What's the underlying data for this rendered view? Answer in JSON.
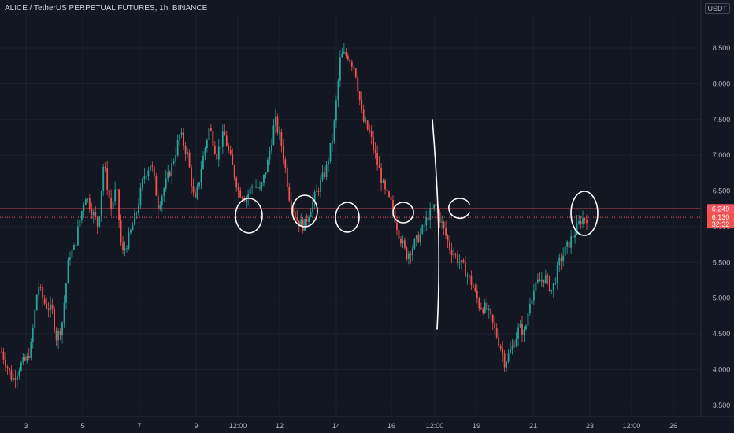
{
  "header": {
    "title": "ALICE / TetherUS PERPETUAL FUTURES, 1h, BINANCE",
    "currency": "USDT"
  },
  "colors": {
    "background": "#131722",
    "grid": "#1e222d",
    "axis_text": "#b2b5be",
    "up": "#26a69a",
    "down": "#ef5350",
    "line": "#f7525f",
    "annotation": "#ffffff"
  },
  "chart_data": {
    "type": "candlestick",
    "title": "ALICE / TetherUS PERPETUAL FUTURES, 1h, BINANCE",
    "ylim": [
      3.4,
      8.8
    ],
    "y_ticks": [
      "8.500",
      "8.000",
      "7.500",
      "7.000",
      "6.500",
      "6.000",
      "5.500",
      "5.000",
      "4.500",
      "4.000",
      "3.500"
    ],
    "x_ticks": [
      "3",
      "5",
      "7",
      "9",
      "12:00",
      "12",
      "14",
      "16",
      "12:00",
      "19",
      "21",
      "23",
      "12:00",
      "26"
    ],
    "grid": true,
    "horizontal_line": {
      "value": 6.249,
      "label": "6.249"
    },
    "last_price": {
      "value": 6.13,
      "label": "6.130",
      "countdown": "32:32"
    },
    "price_path": [
      [
        0,
        4.25
      ],
      [
        0.06,
        3.85
      ],
      [
        0.1,
        4.05
      ],
      [
        0.12,
        4.1
      ],
      [
        0.14,
        4.15
      ],
      [
        0.16,
        4.3
      ],
      [
        0.2,
        5.2
      ],
      [
        0.23,
        4.95
      ],
      [
        0.28,
        4.8
      ],
      [
        0.3,
        4.45
      ],
      [
        0.33,
        4.6
      ],
      [
        0.37,
        5.6
      ],
      [
        0.4,
        5.7
      ],
      [
        0.43,
        6.1
      ],
      [
        0.46,
        6.45
      ],
      [
        0.5,
        6.2
      ],
      [
        0.53,
        6.0
      ],
      [
        0.56,
        6.9
      ],
      [
        0.6,
        6.25
      ],
      [
        0.63,
        6.55
      ],
      [
        0.66,
        5.6
      ],
      [
        0.7,
        5.85
      ],
      [
        0.74,
        6.2
      ],
      [
        0.78,
        6.7
      ],
      [
        0.82,
        6.9
      ],
      [
        0.86,
        6.3
      ],
      [
        0.9,
        6.6
      ],
      [
        0.94,
        6.9
      ],
      [
        0.98,
        7.3
      ],
      [
        1.02,
        7.0
      ],
      [
        1.06,
        6.3
      ],
      [
        1.1,
        6.9
      ],
      [
        1.14,
        7.4
      ],
      [
        1.18,
        7.0
      ],
      [
        1.22,
        7.3
      ],
      [
        1.26,
        6.9
      ],
      [
        1.3,
        6.5
      ],
      [
        1.34,
        6.4
      ],
      [
        1.38,
        6.6
      ],
      [
        1.42,
        6.5
      ],
      [
        1.46,
        6.9
      ],
      [
        1.5,
        7.5
      ],
      [
        1.54,
        7.1
      ],
      [
        1.58,
        6.4
      ],
      [
        1.62,
        6.1
      ],
      [
        1.66,
        6.0
      ],
      [
        1.7,
        6.3
      ],
      [
        1.74,
        6.55
      ],
      [
        1.78,
        6.8
      ],
      [
        1.82,
        7.3
      ],
      [
        1.86,
        8.4
      ],
      [
        1.9,
        8.4
      ],
      [
        1.94,
        8.2
      ],
      [
        1.98,
        7.5
      ],
      [
        2.02,
        7.3
      ],
      [
        2.06,
        6.9
      ],
      [
        2.1,
        6.5
      ],
      [
        2.14,
        6.3
      ],
      [
        2.18,
        5.9
      ],
      [
        2.22,
        5.6
      ],
      [
        2.25,
        5.7
      ],
      [
        2.3,
        5.9
      ],
      [
        2.34,
        6.15
      ],
      [
        2.38,
        6.3
      ],
      [
        2.42,
        6.0
      ],
      [
        2.46,
        5.7
      ],
      [
        2.5,
        5.55
      ],
      [
        2.54,
        5.4
      ],
      [
        2.58,
        5.2
      ],
      [
        2.62,
        4.9
      ],
      [
        2.66,
        4.85
      ],
      [
        2.7,
        4.6
      ],
      [
        2.74,
        4.3
      ],
      [
        2.76,
        4.1
      ],
      [
        2.8,
        4.3
      ],
      [
        2.84,
        4.6
      ],
      [
        2.87,
        4.5
      ],
      [
        2.9,
        5.0
      ],
      [
        2.94,
        5.2
      ],
      [
        2.98,
        5.3
      ],
      [
        3.02,
        5.1
      ],
      [
        3.06,
        5.5
      ],
      [
        3.1,
        5.7
      ],
      [
        3.14,
        5.9
      ],
      [
        3.18,
        6.1
      ],
      [
        3.21,
        6.13
      ]
    ]
  }
}
